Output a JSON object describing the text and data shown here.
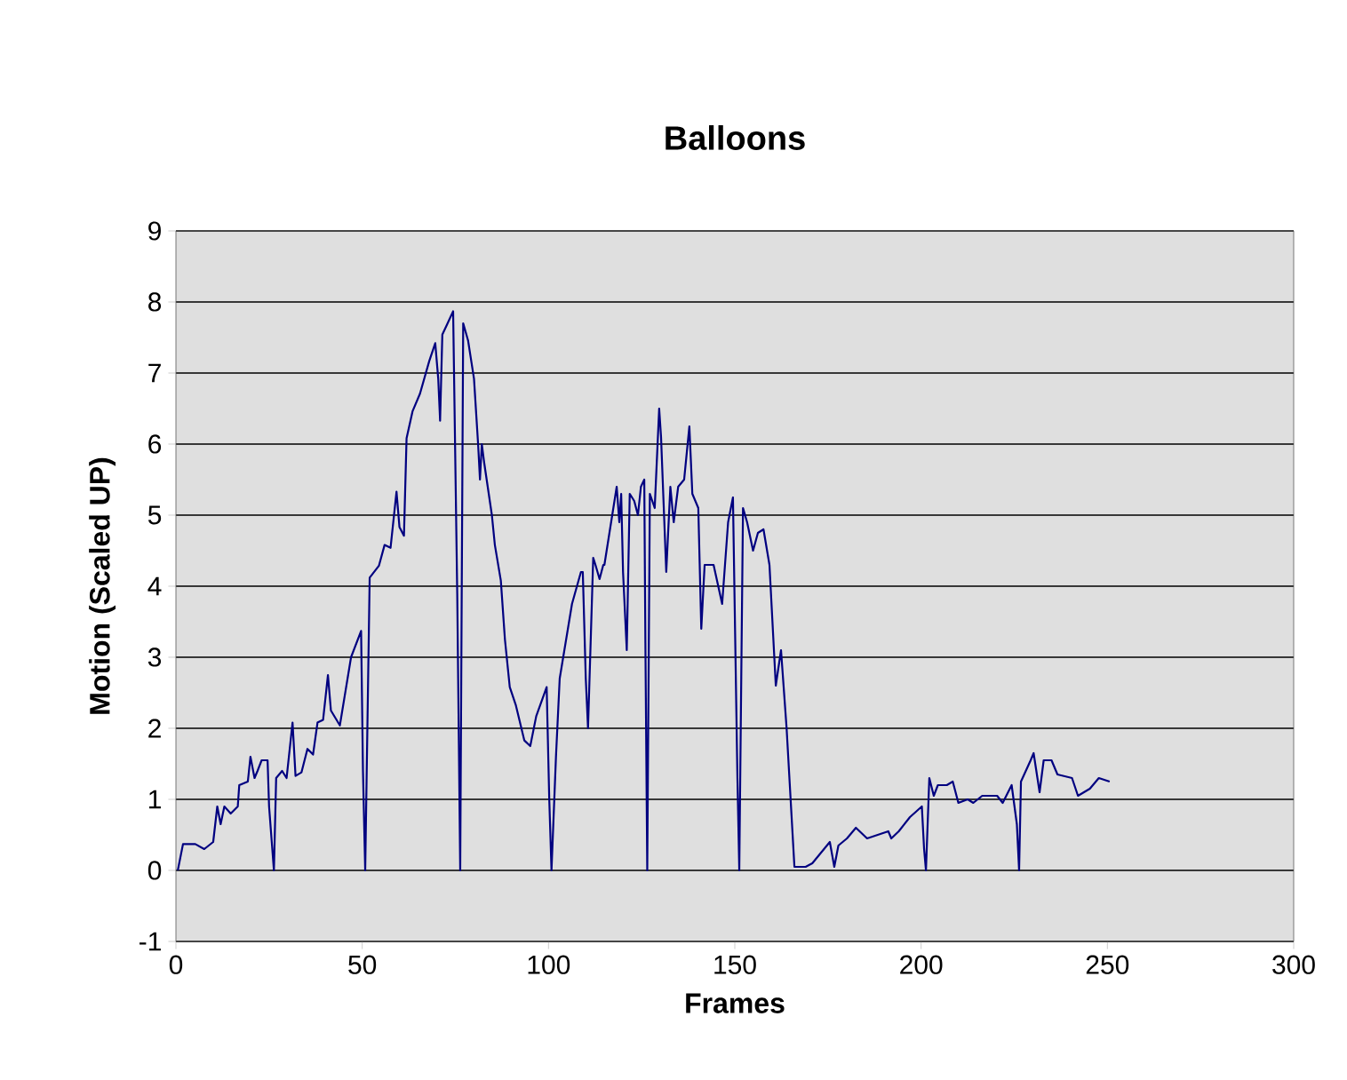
{
  "chart_data": {
    "type": "line",
    "title": "Balloons",
    "xlabel": "Frames",
    "ylabel": "Motion (Scaled UP)",
    "color": "#000080",
    "grid": "y",
    "xlim": [
      0,
      300
    ],
    "ylim": [
      -1,
      9
    ],
    "xticks": [
      0,
      50,
      100,
      150,
      200,
      250,
      300
    ],
    "yticks": [
      -1,
      0,
      1,
      2,
      3,
      4,
      5,
      6,
      7,
      8,
      9
    ],
    "x": [
      0.5,
      1.9,
      5.2,
      7.6,
      10,
      11.1,
      12,
      13,
      14.7,
      16.6,
      17,
      19.3,
      20,
      21.1,
      21.9,
      23,
      24.6,
      25,
      26.3,
      26.9,
      28.5,
      29.7,
      31.3,
      32.1,
      33.7,
      35.3,
      36.8,
      38,
      39.5,
      40.8,
      41.6,
      44,
      47,
      49.7,
      50.2,
      50.8,
      52,
      54.5,
      56,
      57.6,
      59.2,
      60,
      61.2,
      61.9,
      63.5,
      65.5,
      68,
      69.6,
      70.4,
      70.9,
      71.5,
      73,
      74.4,
      75.5,
      76.3,
      77.1,
      78.4,
      80,
      81.1,
      81.6,
      82.1,
      82.7,
      84.8,
      85.6,
      87.2,
      88.3,
      89.6,
      91.2,
      93.5,
      95.1,
      96.7,
      99.5,
      100.2,
      100.8,
      102,
      103,
      106.3,
      108.7,
      109.2,
      110,
      110.6,
      112,
      112.6,
      113.7,
      114.7,
      115,
      118.3,
      119,
      119.5,
      120,
      121,
      121.8,
      123,
      124,
      124.8,
      125.7,
      126,
      126.5,
      127.2,
      128.5,
      129.7,
      130.2,
      131.6,
      132.7,
      133.6,
      134.8,
      136.4,
      137.8,
      138.6,
      140.2,
      141,
      141.9,
      144.3,
      146.6,
      148.2,
      149.5,
      150.7,
      151.2,
      152.2,
      153.3,
      154.9,
      156.2,
      157.7,
      159.3,
      161,
      162.4,
      163.9,
      166,
      169,
      170.8,
      175.5,
      176.7,
      177.8,
      180.1,
      182.5,
      185.5,
      191.2,
      192,
      194,
      197,
      200.2,
      200.8,
      201.3,
      202.2,
      203.4,
      204.5,
      206.9,
      208.5,
      210,
      212.5,
      214,
      216.4,
      220.4,
      221.9,
      224.3,
      225.7,
      226.3,
      226.8,
      229.4,
      230.2,
      231.8,
      232.9,
      235,
      236.6,
      240.5,
      242.1,
      243.7,
      245.3,
      247.7,
      250.6
    ],
    "values": [
      0,
      0.37,
      0.37,
      0.3,
      0.4,
      0.9,
      0.65,
      0.9,
      0.8,
      0.9,
      1.2,
      1.25,
      1.6,
      1.3,
      1.4,
      1.55,
      1.55,
      0.9,
      0,
      1.3,
      1.4,
      1.3,
      2.08,
      1.33,
      1.38,
      1.71,
      1.63,
      2.08,
      2.12,
      2.75,
      2.25,
      2.04,
      3,
      3.37,
      1.4,
      0,
      4.12,
      4.29,
      4.58,
      4.54,
      5.33,
      4.83,
      4.71,
      6.08,
      6.46,
      6.71,
      7.17,
      7.42,
      6.92,
      6.33,
      7.54,
      7.71,
      7.87,
      3.9,
      0,
      7.7,
      7.46,
      6.92,
      6,
      5.5,
      6,
      5.75,
      5,
      4.58,
      4.08,
      3.25,
      2.58,
      2.33,
      1.83,
      1.75,
      2.17,
      2.58,
      1,
      0,
      1.6,
      2.7,
      3.75,
      4.2,
      4.2,
      2.7,
      2,
      4.4,
      4.3,
      4.1,
      4.3,
      4.3,
      5.4,
      4.9,
      5.3,
      4.2,
      3.1,
      5.3,
      5.2,
      5,
      5.4,
      5.5,
      3.2,
      0,
      5.3,
      5.1,
      6.5,
      6.1,
      4.2,
      5.4,
      4.9,
      5.4,
      5.5,
      6.25,
      5.3,
      5.1,
      3.4,
      4.3,
      4.3,
      3.75,
      4.9,
      5.25,
      1.3,
      0,
      5.1,
      4.9,
      4.5,
      4.75,
      4.8,
      4.3,
      2.6,
      3.1,
      2,
      0.05,
      0.05,
      0.1,
      0.4,
      0.05,
      0.35,
      0.45,
      0.6,
      0.45,
      0.55,
      0.45,
      0.55,
      0.75,
      0.9,
      0.3,
      0,
      1.3,
      1.05,
      1.2,
      1.2,
      1.25,
      0.95,
      1,
      0.95,
      1.05,
      1.05,
      0.95,
      1.2,
      0.65,
      0,
      1.25,
      1.55,
      1.65,
      1.1,
      1.55,
      1.55,
      1.35,
      1.3,
      1.05,
      1.1,
      1.15,
      1.3,
      1.25
    ]
  }
}
